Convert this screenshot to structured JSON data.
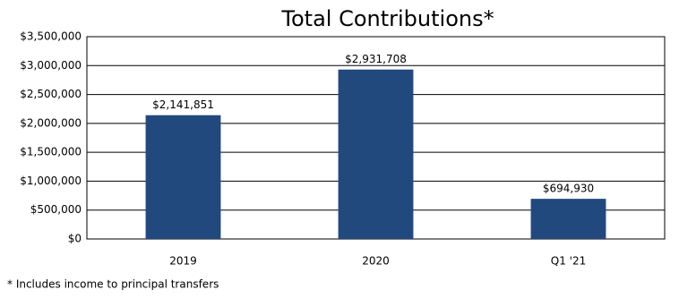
{
  "chart_data": {
    "type": "bar",
    "title": "Total Contributions*",
    "categories": [
      "2019",
      "2020",
      "Q1 '21"
    ],
    "values": [
      2141851,
      2931708,
      694930
    ],
    "value_labels": [
      "$2,141,851",
      "$2,931,708",
      "$694,930"
    ],
    "color": "#22497d",
    "ylim": [
      0,
      3500000
    ],
    "yticks": [
      {
        "value": 0,
        "label": "$0"
      },
      {
        "value": 500000,
        "label": "$500,000"
      },
      {
        "value": 1000000,
        "label": "$1,000,000"
      },
      {
        "value": 1500000,
        "label": "$1,500,000"
      },
      {
        "value": 2000000,
        "label": "$2,000,000"
      },
      {
        "value": 2500000,
        "label": "$2,500,000"
      },
      {
        "value": 3000000,
        "label": "$3,000,000"
      },
      {
        "value": 3500000,
        "label": "$3,500,000"
      }
    ],
    "grid": true,
    "footnote": "* Includes income to principal transfers"
  }
}
